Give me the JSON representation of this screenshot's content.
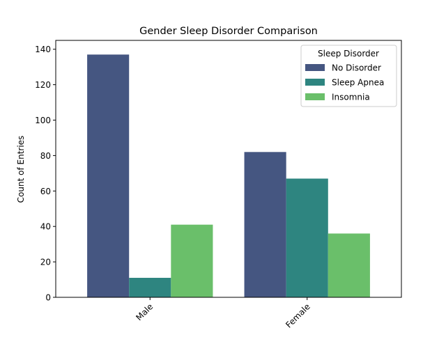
{
  "chart_data": {
    "type": "bar",
    "title": "Gender Sleep Disorder Comparison",
    "xlabel": "",
    "ylabel": "Count of Entries",
    "categories": [
      "Male",
      "Female"
    ],
    "ylim": [
      0,
      145
    ],
    "yticks": [
      0,
      20,
      40,
      60,
      80,
      100,
      120,
      140
    ],
    "grid": false,
    "legend": {
      "title": "Sleep Disorder",
      "placement": "top-right"
    },
    "series": [
      {
        "name": "No Disorder",
        "color": "#455681",
        "values": [
          137,
          82
        ]
      },
      {
        "name": "Sleep Apnea",
        "color": "#2e8580",
        "values": [
          11,
          67
        ]
      },
      {
        "name": "Insomnia",
        "color": "#6abf6a",
        "values": [
          41,
          36
        ]
      }
    ]
  }
}
